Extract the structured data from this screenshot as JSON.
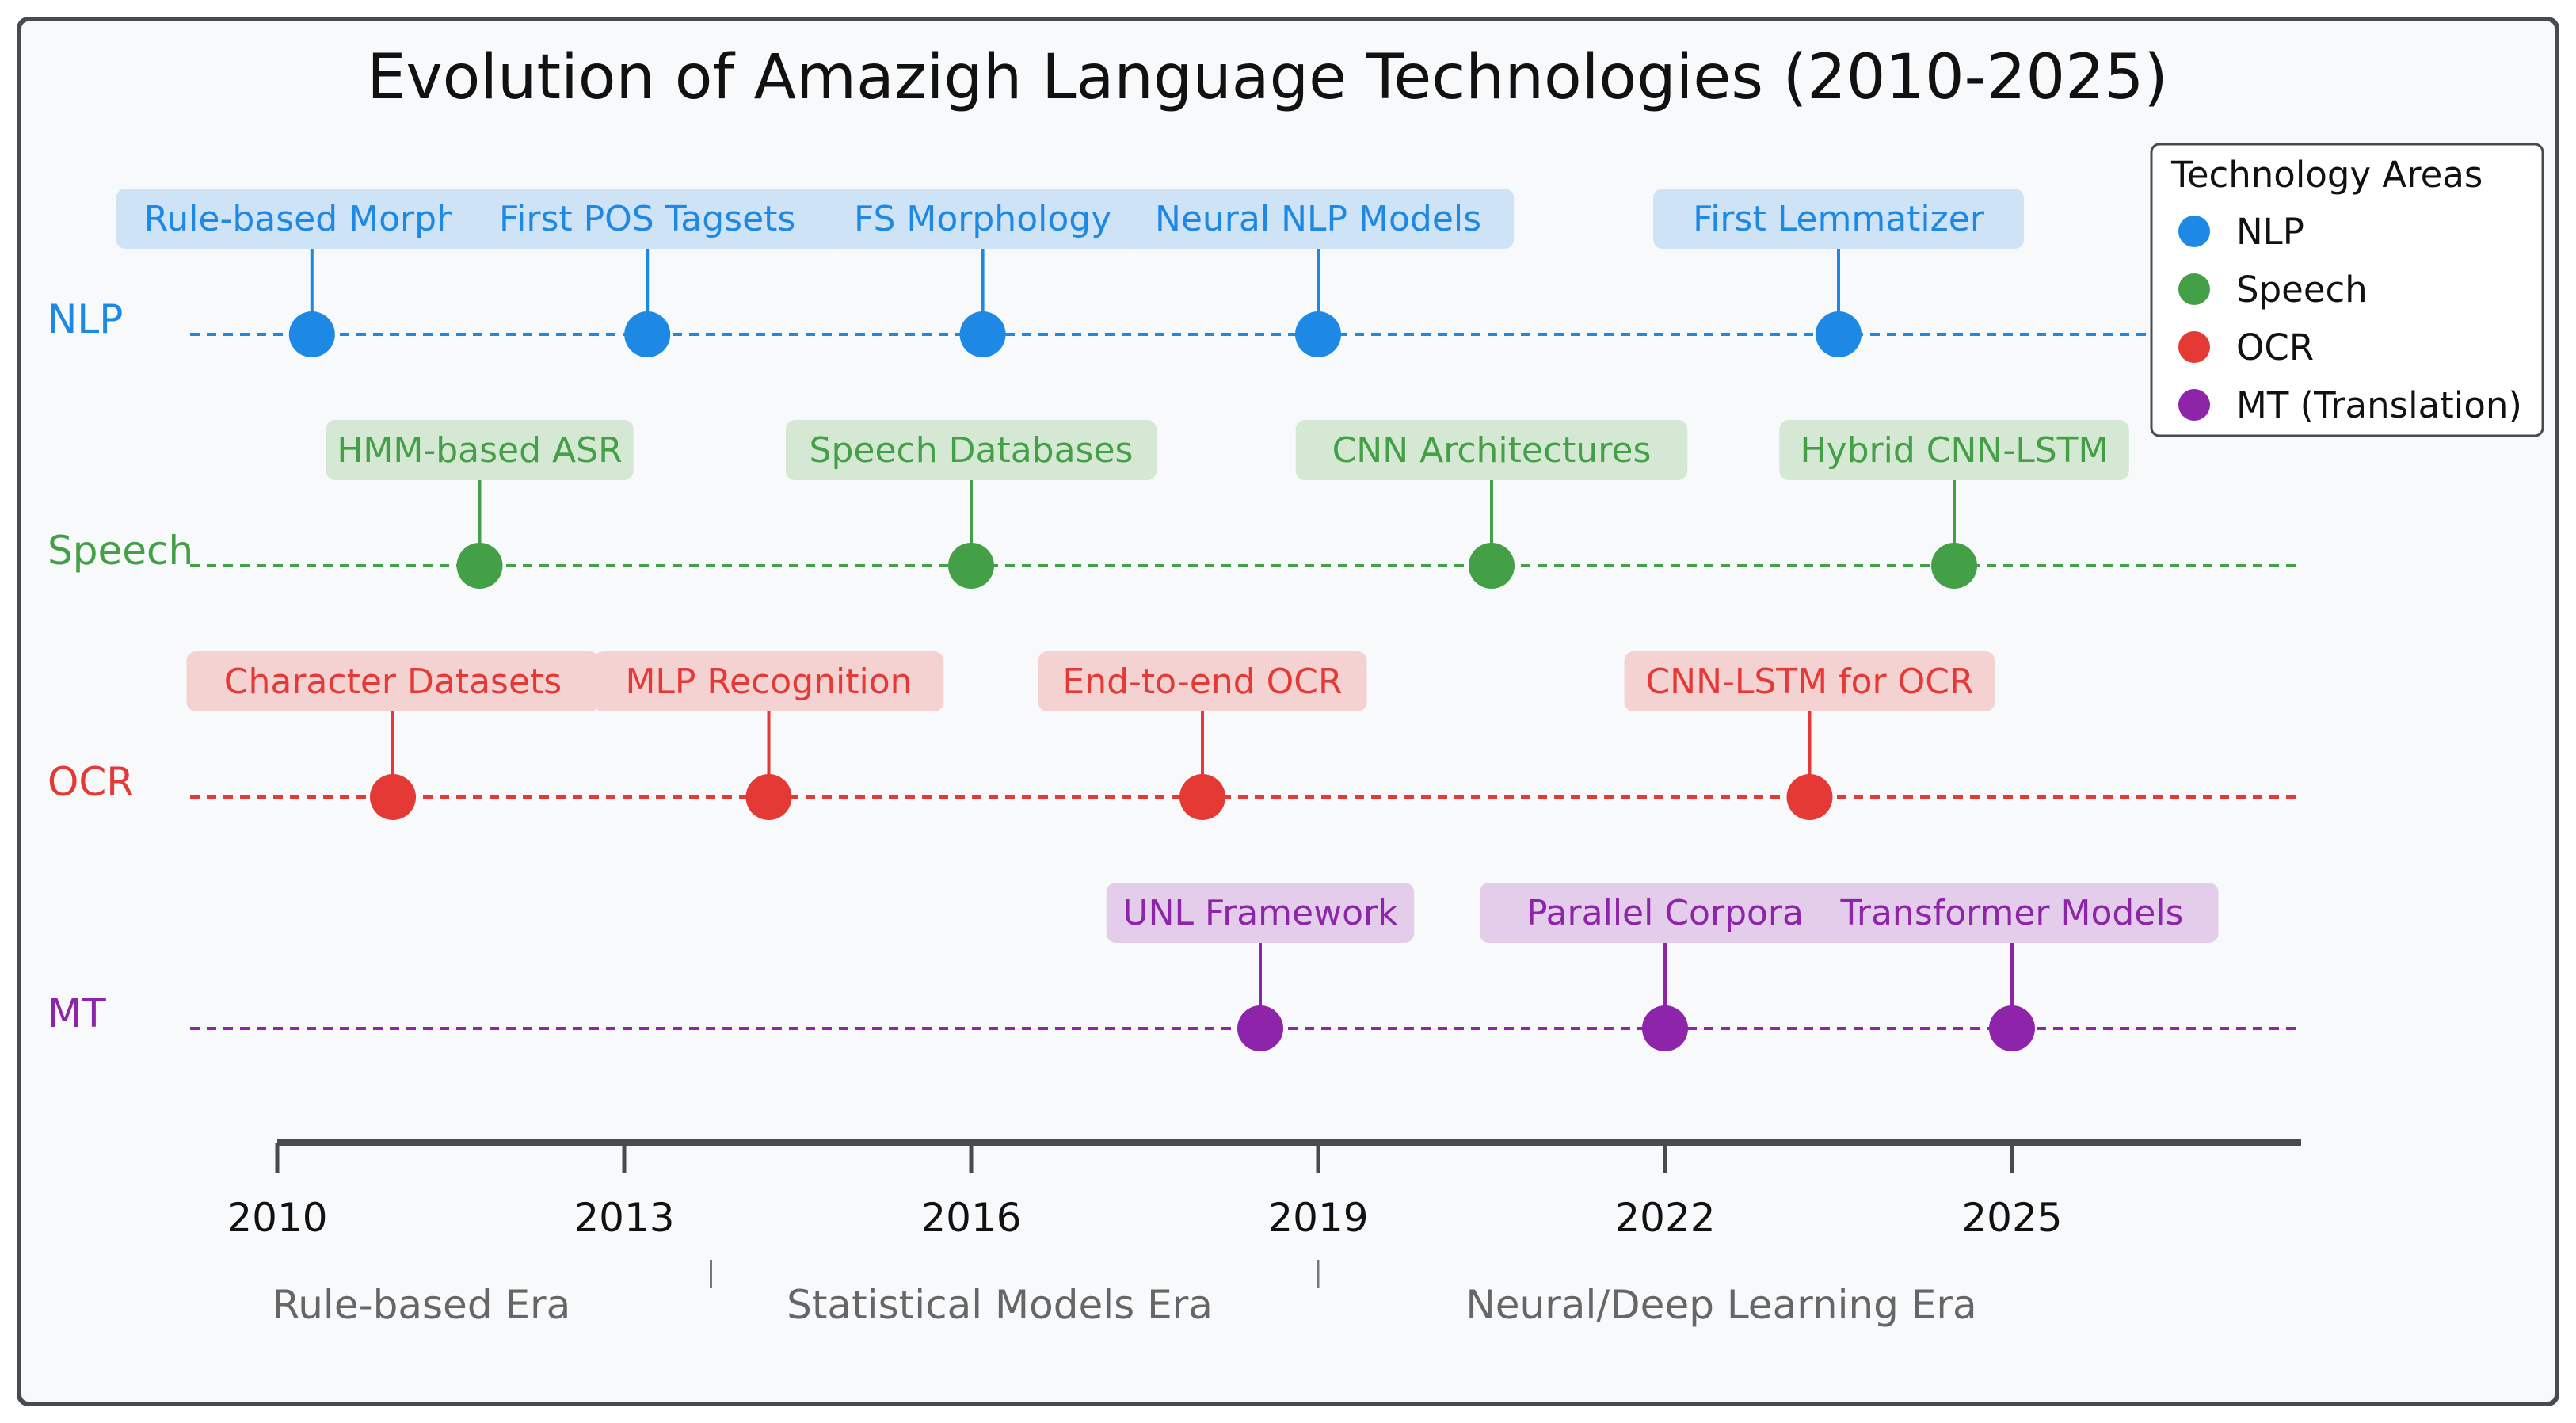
{
  "chart_data": {
    "type": "timeline",
    "title": "Evolution of Amazigh Language Technologies (2010-2025)",
    "x_ticks": [
      2010,
      2013,
      2016,
      2019,
      2022,
      2025
    ],
    "xlim": [
      2010,
      2027.5
    ],
    "legend": {
      "title": "Technology Areas",
      "position": "top-right",
      "entries": [
        {
          "label": "NLP",
          "color": "#1e88e5"
        },
        {
          "label": "Speech",
          "color": "#43a047"
        },
        {
          "label": "OCR",
          "color": "#e53935"
        },
        {
          "label": "MT (Translation)",
          "color": "#8e24aa"
        }
      ]
    },
    "series": [
      {
        "name": "NLP",
        "color": "#1e88e5",
        "bg": "#cfe3f7",
        "events": [
          {
            "year": 2010.3,
            "label": "Rule-based Morpho"
          },
          {
            "year": 2013.2,
            "label": "First POS Tagsets"
          },
          {
            "year": 2016.1,
            "label": "FS Morphology"
          },
          {
            "year": 2019.0,
            "label": "Neural NLP Models"
          },
          {
            "year": 2023.5,
            "label": "First Lemmatizer"
          }
        ]
      },
      {
        "name": "Speech",
        "color": "#43a047",
        "bg": "#d4e8d3",
        "events": [
          {
            "year": 2011.75,
            "label": "HMM-based ASR"
          },
          {
            "year": 2016.0,
            "label": "Speech Databases"
          },
          {
            "year": 2020.5,
            "label": "CNN Architectures"
          },
          {
            "year": 2024.5,
            "label": "Hybrid CNN-LSTM"
          }
        ]
      },
      {
        "name": "OCR",
        "color": "#e53935",
        "bg": "#f4d2d2",
        "events": [
          {
            "year": 2011.0,
            "label": "Character Datasets"
          },
          {
            "year": 2014.25,
            "label": "MLP Recognition"
          },
          {
            "year": 2018.0,
            "label": "End-to-end OCR"
          },
          {
            "year": 2023.25,
            "label": "CNN-LSTM for OCR"
          }
        ]
      },
      {
        "name": "MT",
        "color": "#8e24aa",
        "bg": "#e4cdeb",
        "events": [
          {
            "year": 2018.5,
            "label": "UNL Framework"
          },
          {
            "year": 2022.0,
            "label": "Parallel Corpora"
          },
          {
            "year": 2025.0,
            "label": "Transformer Models"
          }
        ]
      }
    ],
    "eras": [
      {
        "label": "Rule-based Era",
        "from": 2010,
        "to": 2013.75
      },
      {
        "label": "Statistical Models Era",
        "from": 2013.75,
        "to": 2019
      },
      {
        "label": "Neural/Deep Learning Era",
        "from": 2019,
        "to": 2027.5
      }
    ]
  }
}
